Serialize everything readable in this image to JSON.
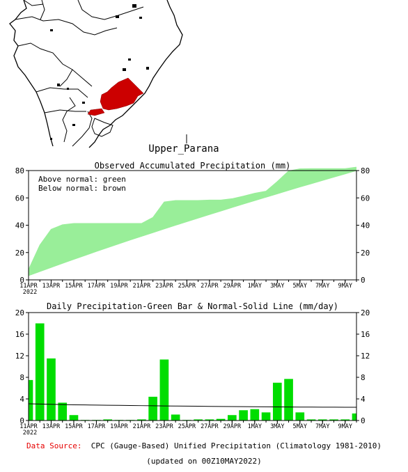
{
  "region_name": "Upper_Parana",
  "colors": {
    "observed_fill": "#99ee99",
    "daily_bar": "#00dd00",
    "region": "#cc0000",
    "source_label": "#e60000"
  },
  "footer": {
    "source_label": "Data Source:",
    "source_text": "CPC (Gauge-Based) Unified Precipitation (Climatology 1981-2010)",
    "updated": "(updated on 00Z10MAY2022)"
  },
  "chart_data": [
    {
      "type": "area",
      "title": "Observed Accumulated Precipitation (mm)",
      "legend_lines": [
        "Above normal: green",
        "Below normal: brown"
      ],
      "legend_placement": "top-left",
      "x_ticks": [
        "11APR",
        "13APR",
        "15APR",
        "17APR",
        "19APR",
        "21APR",
        "23APR",
        "25APR",
        "27APR",
        "29APR",
        "1MAY",
        "3MAY",
        "5MAY",
        "7MAY",
        "9MAY"
      ],
      "x_year": "2022",
      "ylim": [
        0,
        80
      ],
      "y_ticks": [
        0,
        20,
        40,
        60,
        80
      ],
      "days": [
        "11APR",
        "12APR",
        "13APR",
        "14APR",
        "15APR",
        "16APR",
        "17APR",
        "18APR",
        "19APR",
        "20APR",
        "21APR",
        "22APR",
        "23APR",
        "24APR",
        "25APR",
        "26APR",
        "27APR",
        "28APR",
        "29APR",
        "30APR",
        "1MAY",
        "2MAY",
        "3MAY",
        "4MAY",
        "5MAY",
        "6MAY",
        "7MAY",
        "8MAY",
        "9MAY",
        "10MAY"
      ],
      "series": [
        {
          "name": "Observed",
          "values": [
            7.5,
            25.5,
            37,
            40.3,
            41.3,
            41.3,
            41.3,
            41.3,
            41.3,
            41.3,
            41.3,
            45.7,
            57,
            58.1,
            58.1,
            58.1,
            58.4,
            58.4,
            59.4,
            61.3,
            63.4,
            64.9,
            72,
            79.7,
            81.3,
            81.4,
            81.4,
            81.4,
            81.4,
            82.5
          ]
        },
        {
          "name": "Normal",
          "values": [
            3.1,
            6.1,
            9.1,
            12.1,
            15,
            17.9,
            20.8,
            23.6,
            26.4,
            29.2,
            31.9,
            34.6,
            37.3,
            40,
            42.6,
            45.2,
            47.8,
            50.4,
            53,
            55.5,
            58,
            60.5,
            63,
            65.5,
            68,
            70.4,
            72.8,
            75.2,
            77.6,
            80
          ]
        }
      ]
    },
    {
      "type": "bar",
      "title": "Daily Precipitation-Green Bar & Normal-Solid Line (mm/day)",
      "x_ticks": [
        "11APR",
        "13APR",
        "15APR",
        "17APR",
        "19APR",
        "21APR",
        "23APR",
        "25APR",
        "27APR",
        "29APR",
        "1MAY",
        "3MAY",
        "5MAY",
        "7MAY",
        "9MAY"
      ],
      "x_year": "2022",
      "ylim": [
        0,
        20
      ],
      "y_ticks": [
        0,
        4,
        8,
        12,
        16,
        20
      ],
      "days": [
        "11APR",
        "12APR",
        "13APR",
        "14APR",
        "15APR",
        "16APR",
        "17APR",
        "18APR",
        "19APR",
        "20APR",
        "21APR",
        "22APR",
        "23APR",
        "24APR",
        "25APR",
        "26APR",
        "27APR",
        "28APR",
        "29APR",
        "30APR",
        "1MAY",
        "2MAY",
        "3MAY",
        "4MAY",
        "5MAY",
        "6MAY",
        "7MAY",
        "8MAY",
        "9MAY",
        "10MAY"
      ],
      "series": [
        {
          "name": "Daily",
          "values": [
            7.5,
            18,
            11.5,
            3.3,
            1,
            0.1,
            0.1,
            0.2,
            0.1,
            0.1,
            0.2,
            4.4,
            11.3,
            1.1,
            0.1,
            0.2,
            0.2,
            0.3,
            1,
            1.9,
            2.1,
            1.5,
            7,
            7.7,
            1.5,
            0.2,
            0.2,
            0.2,
            0.2,
            1.3
          ]
        },
        {
          "name": "Normal",
          "values": [
            3.1,
            3.05,
            3.0,
            2.95,
            2.9,
            2.88,
            2.85,
            2.82,
            2.8,
            2.78,
            2.75,
            2.72,
            2.7,
            2.68,
            2.66,
            2.64,
            2.62,
            2.6,
            2.58,
            2.56,
            2.55,
            2.53,
            2.52,
            2.5,
            2.49,
            2.48,
            2.47,
            2.46,
            2.45,
            2.45
          ]
        }
      ]
    }
  ]
}
